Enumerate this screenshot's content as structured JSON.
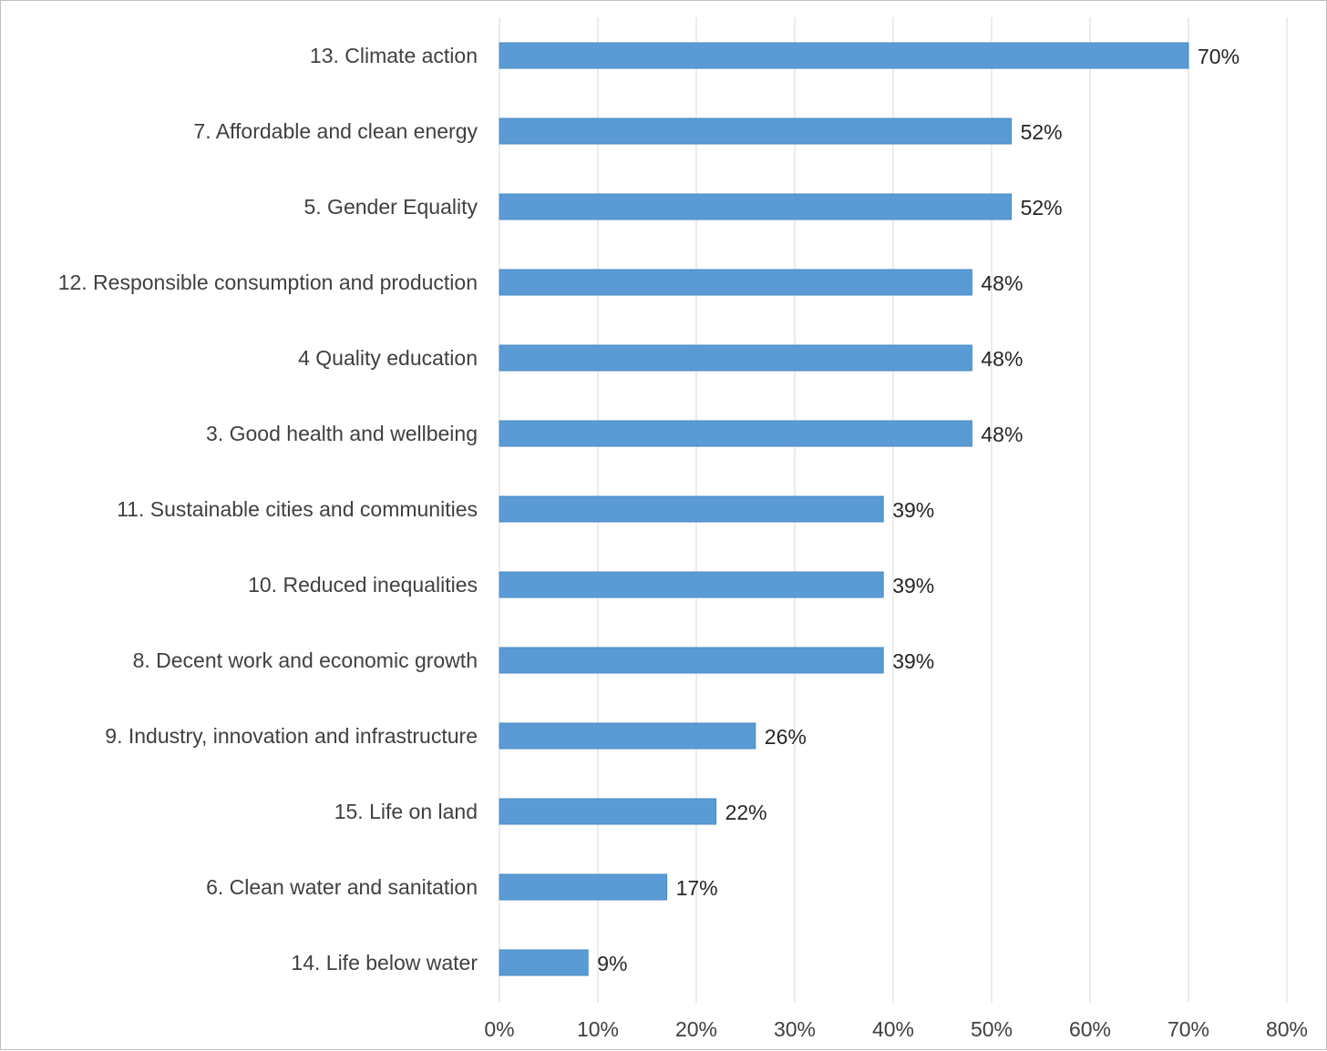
{
  "chart_data": {
    "type": "bar",
    "orientation": "horizontal",
    "categories": [
      "13. Climate action",
      "7. Affordable and clean energy",
      "5. Gender Equality",
      "12. Responsible consumption and production",
      "4 Quality education",
      "3. Good health and wellbeing",
      "11. Sustainable cities and communities",
      "10. Reduced inequalities",
      "8. Decent work and economic growth",
      "9. Industry, innovation and infrastructure",
      "15. Life on land",
      "6. Clean water and sanitation",
      "14. Life below water"
    ],
    "values": [
      70,
      52,
      52,
      48,
      48,
      48,
      39,
      39,
      39,
      26,
      22,
      17,
      9
    ],
    "data_labels": [
      "70%",
      "52%",
      "52%",
      "48%",
      "48%",
      "48%",
      "39%",
      "39%",
      "39%",
      "26%",
      "22%",
      "17%",
      "9%"
    ],
    "xticks": [
      "0%",
      "10%",
      "20%",
      "30%",
      "40%",
      "50%",
      "60%",
      "70%",
      "80%"
    ],
    "xlim": [
      0,
      80
    ],
    "title": "",
    "xlabel": "",
    "ylabel": "",
    "grid": "vertical",
    "legend": "none",
    "bar_color": "#5b9bd5",
    "gridline_color": "#d9d9d9"
  }
}
